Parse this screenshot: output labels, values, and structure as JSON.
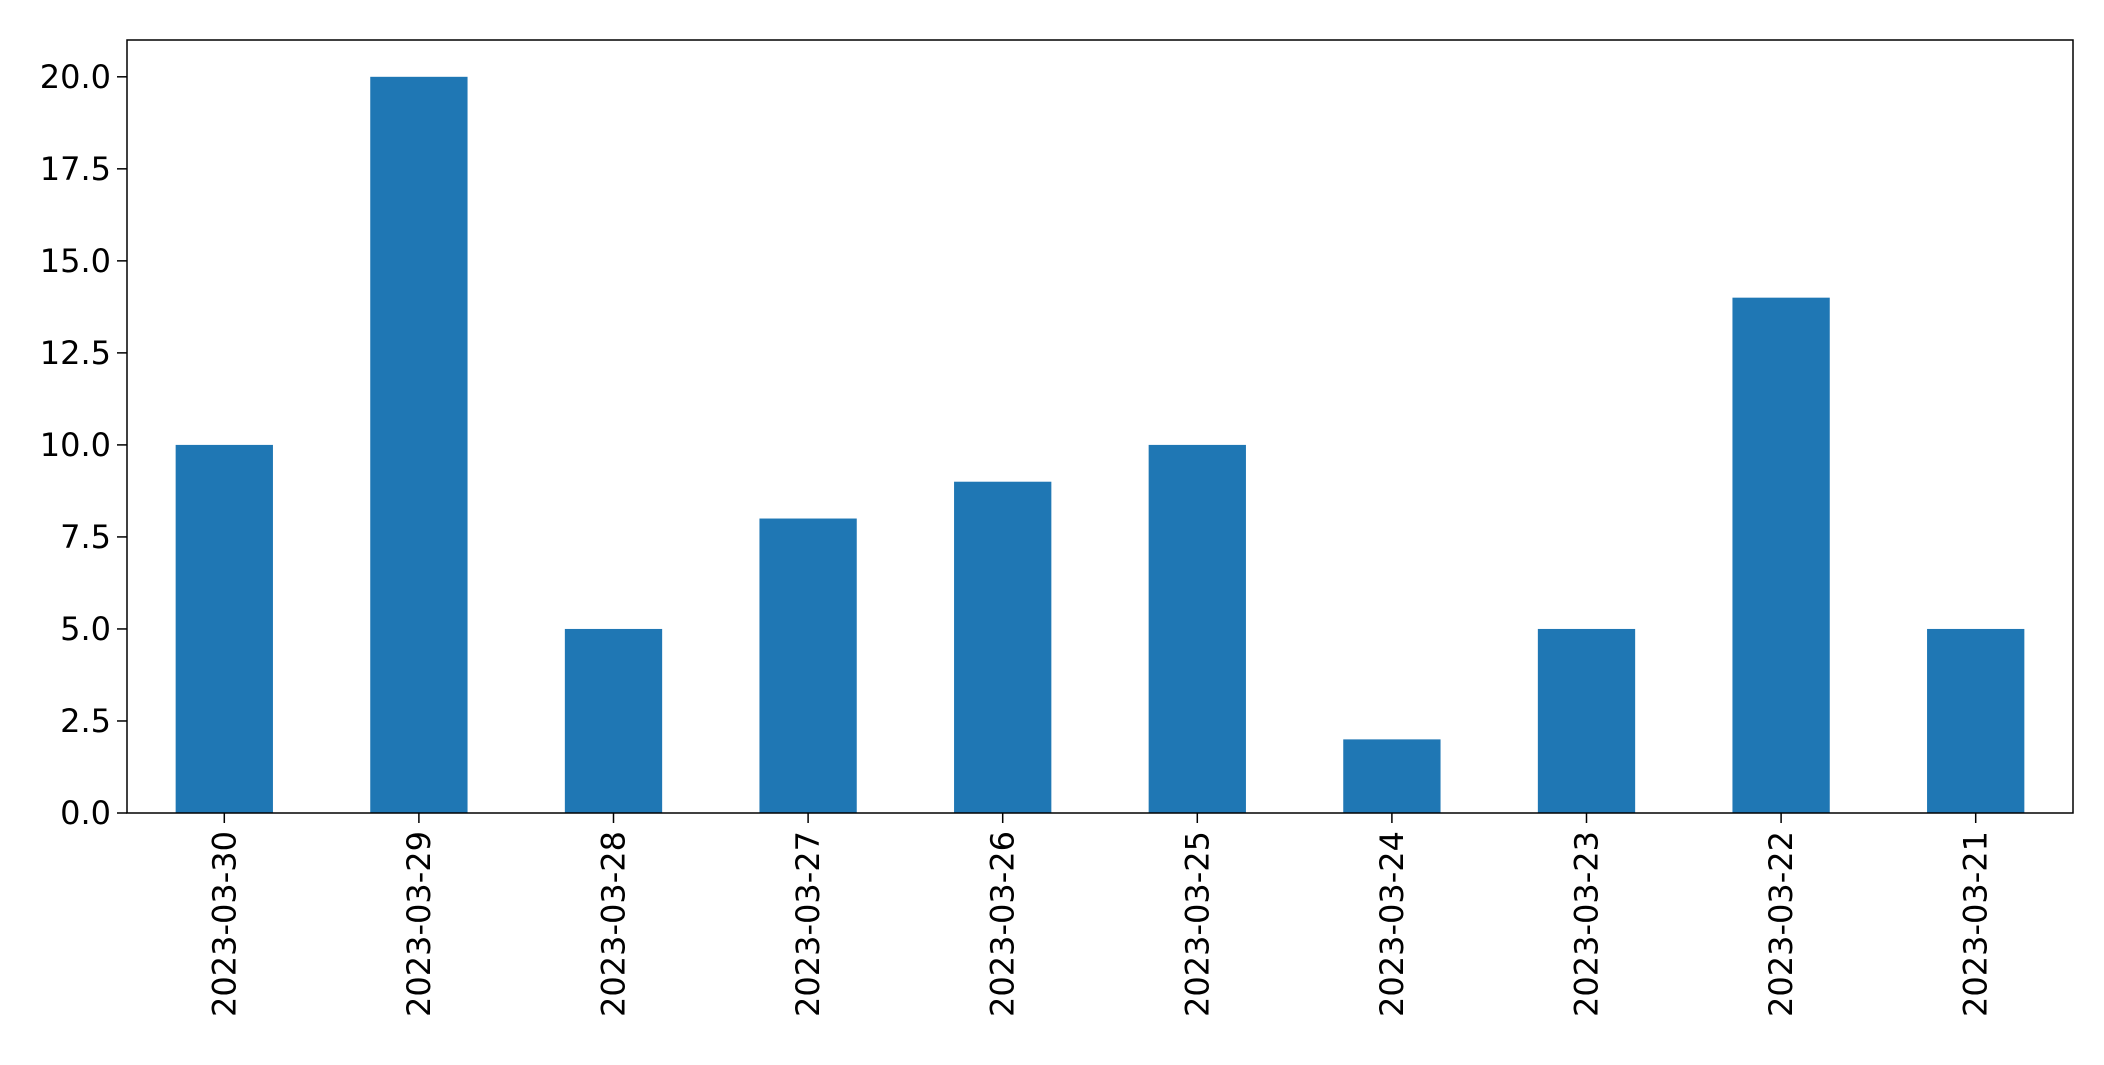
{
  "chart_data": {
    "type": "bar",
    "title": "",
    "xlabel": "",
    "ylabel": "",
    "categories": [
      "2023-03-30",
      "2023-03-29",
      "2023-03-28",
      "2023-03-27",
      "2023-03-26",
      "2023-03-25",
      "2023-03-24",
      "2023-03-23",
      "2023-03-22",
      "2023-03-21"
    ],
    "values": [
      10,
      20,
      5,
      8,
      9,
      10,
      2,
      5,
      14,
      5
    ],
    "ylim": [
      0,
      21
    ],
    "yticks": [
      "0.0",
      "2.5",
      "5.0",
      "7.5",
      "10.0",
      "12.5",
      "15.0",
      "17.5",
      "20.0"
    ],
    "bar_color": "#1f77b4",
    "grid": false,
    "legend": "none"
  }
}
